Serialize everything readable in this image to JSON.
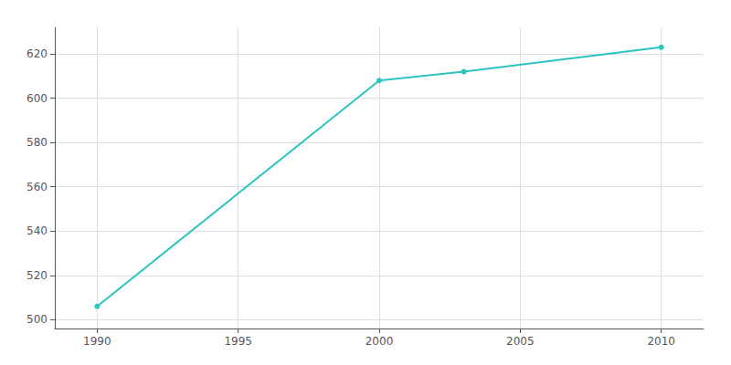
{
  "chart_data": {
    "type": "line",
    "x": [
      1990,
      2000,
      2003,
      2010
    ],
    "values": [
      506,
      608,
      612,
      623
    ],
    "color": "#29c4c0",
    "marker": "circle",
    "xlim": [
      1988.5,
      2011.5
    ],
    "ylim": [
      496,
      632
    ],
    "xticks": [
      1990,
      1995,
      2000,
      2005,
      2010
    ],
    "yticks": [
      500,
      520,
      540,
      560,
      580,
      600,
      620
    ],
    "grid": true
  }
}
